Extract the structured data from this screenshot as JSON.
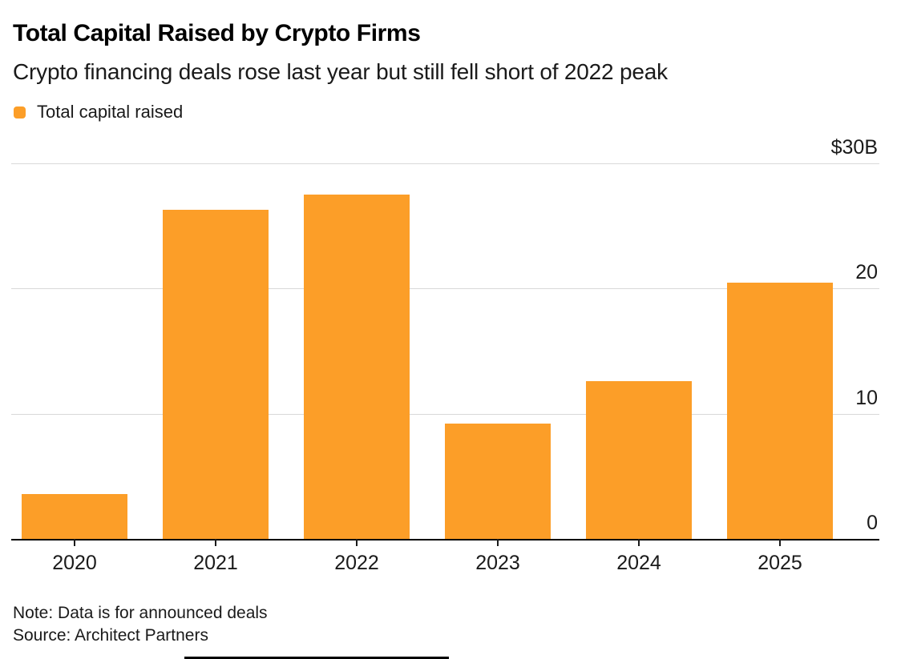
{
  "header": {
    "title": "Total Capital Raised by Crypto Firms",
    "subtitle": "Crypto financing deals rose last year but still fell short of 2022 peak"
  },
  "legend": {
    "label": "Total capital raised",
    "swatch_color": "#FC9E28"
  },
  "chart_data": {
    "type": "bar",
    "title": "Total Capital Raised by Crypto Firms",
    "subtitle": "Crypto financing deals rose last year but still fell short of 2022 peak",
    "legend_entries": [
      "Total capital raised"
    ],
    "categories": [
      "2020",
      "2021",
      "2022",
      "2023",
      "2024",
      "2025"
    ],
    "values": [
      3.6,
      26.3,
      27.5,
      9.2,
      12.6,
      20.5
    ],
    "unit": "billions of US dollars",
    "xlabel": "",
    "ylabel": "",
    "ylim": [
      0,
      30
    ],
    "yticks": [
      {
        "value": 0,
        "label": "0"
      },
      {
        "value": 10,
        "label": "10"
      },
      {
        "value": 20,
        "label": "20"
      },
      {
        "value": 30,
        "label": "$30B"
      }
    ],
    "ytick_side": "right",
    "grid": "horizontal",
    "legend_position": "top-left",
    "bar_color": "#FC9E28",
    "gridline_color": "#d9d9d9",
    "baseline_color": "#000000"
  },
  "footer": {
    "note": "Note: Data is for announced deals",
    "source": "Source: Architect Partners"
  }
}
